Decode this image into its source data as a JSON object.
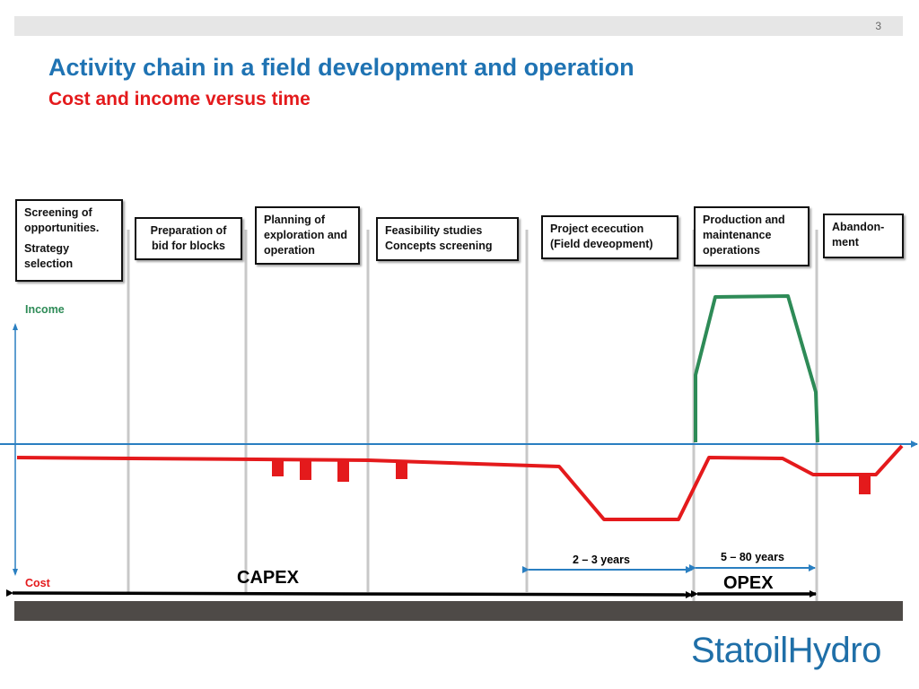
{
  "page_number": "3",
  "title": "Activity chain in a field development and operation",
  "subtitle": "Cost and income versus time",
  "phases": {
    "screening_line1": "Screening of opportunities.",
    "screening_line2": "Strategy selection",
    "bid": "Preparation of bid for blocks",
    "planning": "Planning of exploration and operation",
    "feasibility": "Feasibility studies Concepts screening",
    "execution": "Project ececution (Field deveopment)",
    "production": "Production and maintenance operations",
    "abandonment": "Abandon-ment"
  },
  "labels": {
    "income": "Income",
    "cost": "Cost",
    "capex": "CAPEX",
    "opex": "OPEX",
    "execution_duration": "2 – 3 years",
    "operation_duration": "5 – 80 years"
  },
  "logo": "StatoilHydro",
  "colors": {
    "title": "#1f73b3",
    "subtitle": "#e41a1c",
    "income_curve": "#2e8b57",
    "cost_curve": "#e41a1c",
    "time_axis": "#2a7fc1",
    "logo": "#1f6fa8",
    "bottom_band": "#4e4a47"
  }
}
